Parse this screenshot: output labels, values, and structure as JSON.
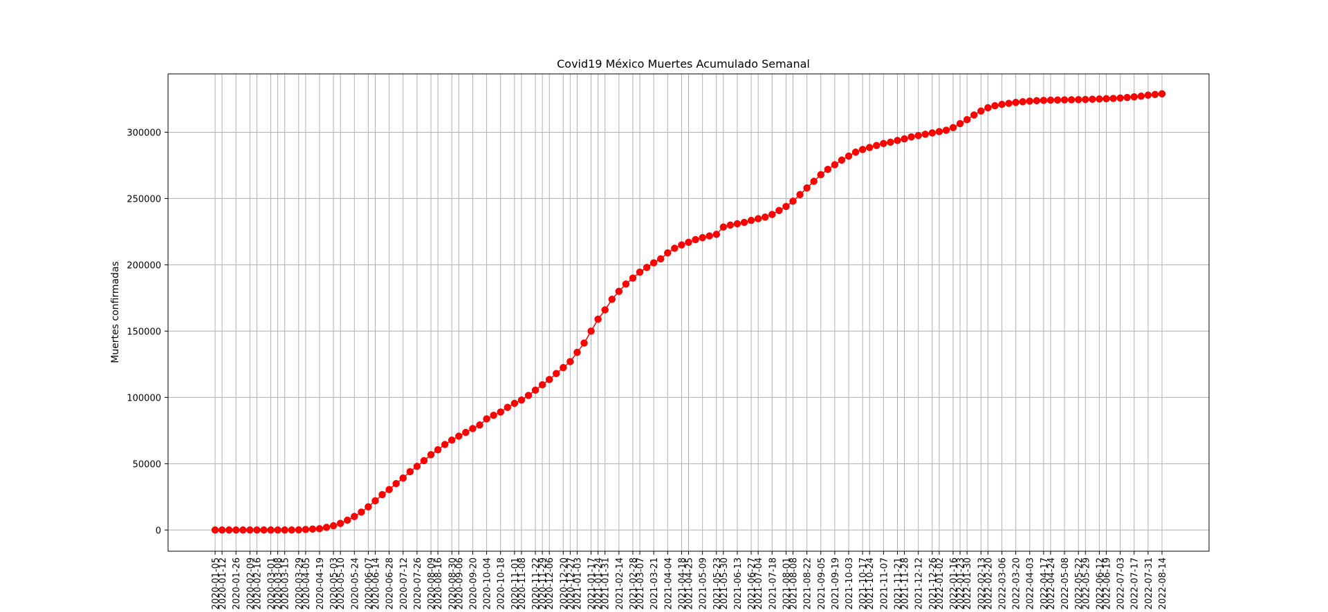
{
  "chart_data": {
    "type": "line",
    "title": "Covid19 México Muertes Acumulado Semanal",
    "xlabel": "",
    "ylabel": "Muertes confirmadas",
    "ylim": [
      -16000,
      344000
    ],
    "yticks": [
      0,
      50000,
      100000,
      150000,
      200000,
      250000,
      300000
    ],
    "grid": true,
    "marker": "circle",
    "color": "#ff0000",
    "x": [
      "2020-01-05",
      "2020-01-12",
      "2020-01-19",
      "2020-01-26",
      "2020-02-02",
      "2020-02-09",
      "2020-02-16",
      "2020-02-23",
      "2020-03-01",
      "2020-03-08",
      "2020-03-15",
      "2020-03-22",
      "2020-03-29",
      "2020-04-05",
      "2020-04-12",
      "2020-04-19",
      "2020-04-26",
      "2020-05-03",
      "2020-05-10",
      "2020-05-17",
      "2020-05-24",
      "2020-05-31",
      "2020-06-07",
      "2020-06-14",
      "2020-06-21",
      "2020-06-28",
      "2020-07-05",
      "2020-07-12",
      "2020-07-19",
      "2020-07-26",
      "2020-08-02",
      "2020-08-09",
      "2020-08-16",
      "2020-08-23",
      "2020-08-30",
      "2020-09-06",
      "2020-09-13",
      "2020-09-20",
      "2020-09-27",
      "2020-10-04",
      "2020-10-11",
      "2020-10-18",
      "2020-10-25",
      "2020-11-01",
      "2020-11-08",
      "2020-11-15",
      "2020-11-22",
      "2020-11-29",
      "2020-12-06",
      "2020-12-13",
      "2020-12-20",
      "2020-12-27",
      "2021-01-03",
      "2021-01-10",
      "2021-01-17",
      "2021-01-24",
      "2021-01-31",
      "2021-02-07",
      "2021-02-14",
      "2021-02-21",
      "2021-02-28",
      "2021-03-07",
      "2021-03-14",
      "2021-03-21",
      "2021-03-28",
      "2021-04-04",
      "2021-04-11",
      "2021-04-18",
      "2021-04-25",
      "2021-05-02",
      "2021-05-09",
      "2021-05-16",
      "2021-05-23",
      "2021-05-30",
      "2021-06-06",
      "2021-06-13",
      "2021-06-20",
      "2021-06-27",
      "2021-07-04",
      "2021-07-11",
      "2021-07-18",
      "2021-07-25",
      "2021-08-01",
      "2021-08-08",
      "2021-08-15",
      "2021-08-22",
      "2021-08-29",
      "2021-09-05",
      "2021-09-12",
      "2021-09-19",
      "2021-09-26",
      "2021-10-03",
      "2021-10-10",
      "2021-10-17",
      "2021-10-24",
      "2021-10-31",
      "2021-11-07",
      "2021-11-14",
      "2021-11-21",
      "2021-11-28",
      "2021-12-05",
      "2021-12-12",
      "2021-12-19",
      "2021-12-26",
      "2022-01-02",
      "2022-01-09",
      "2022-01-16",
      "2022-01-23",
      "2022-01-30",
      "2022-02-06",
      "2022-02-13",
      "2022-02-20",
      "2022-02-27",
      "2022-03-06",
      "2022-03-13",
      "2022-03-20",
      "2022-03-27",
      "2022-04-03",
      "2022-04-10",
      "2022-04-17",
      "2022-04-24",
      "2022-05-01",
      "2022-05-08",
      "2022-05-15",
      "2022-05-22",
      "2022-05-29",
      "2022-06-05",
      "2022-06-12",
      "2022-06-19",
      "2022-06-26",
      "2022-07-03",
      "2022-07-10",
      "2022-07-17",
      "2022-07-24",
      "2022-07-31",
      "2022-08-07",
      "2022-08-14"
    ],
    "xtick_labels": [
      "2020-01-05",
      "2020-01-12",
      "2020-01-26",
      "2020-02-09",
      "2020-02-16",
      "2020-03-01",
      "2020-03-08",
      "2020-03-15",
      "2020-03-29",
      "2020-04-05",
      "2020-04-19",
      "2020-05-03",
      "2020-05-10",
      "2020-05-24",
      "2020-06-07",
      "2020-06-14",
      "2020-06-28",
      "2020-07-12",
      "2020-07-26",
      "2020-08-09",
      "2020-08-16",
      "2020-08-30",
      "2020-09-06",
      "2020-09-20",
      "2020-10-04",
      "2020-10-18",
      "2020-11-01",
      "2020-11-08",
      "2020-11-22",
      "2020-11-29",
      "2020-12-06",
      "2020-12-20",
      "2020-12-27",
      "2021-01-03",
      "2021-01-17",
      "2021-01-24",
      "2021-01-31",
      "2021-02-14",
      "2021-02-28",
      "2021-03-07",
      "2021-03-21",
      "2021-04-04",
      "2021-04-18",
      "2021-04-25",
      "2021-05-09",
      "2021-05-23",
      "2021-05-30",
      "2021-06-13",
      "2021-06-27",
      "2021-07-04",
      "2021-07-18",
      "2021-08-01",
      "2021-08-08",
      "2021-08-22",
      "2021-09-05",
      "2021-09-19",
      "2021-10-03",
      "2021-10-17",
      "2021-10-24",
      "2021-11-07",
      "2021-11-21",
      "2021-11-28",
      "2021-12-12",
      "2021-12-26",
      "2022-01-02",
      "2022-01-16",
      "2022-01-23",
      "2022-01-30",
      "2022-02-13",
      "2022-02-20",
      "2022-03-06",
      "2022-03-20",
      "2022-04-03",
      "2022-04-17",
      "2022-04-24",
      "2022-05-08",
      "2022-05-22",
      "2022-05-29",
      "2022-06-12",
      "2022-06-19",
      "2022-07-03",
      "2022-07-17",
      "2022-07-31",
      "2022-08-14"
    ],
    "y": [
      0,
      0,
      0,
      0,
      0,
      0,
      0,
      0,
      0,
      0,
      2,
      20,
      100,
      400,
      700,
      1000,
      2000,
      3200,
      5000,
      7400,
      10200,
      13500,
      17500,
      22000,
      26700,
      30500,
      35000,
      39200,
      44000,
      48000,
      52300,
      56800,
      60500,
      64500,
      67800,
      70800,
      73600,
      76500,
      79200,
      83800,
      86500,
      89000,
      92500,
      95500,
      98000,
      101500,
      105500,
      109500,
      113500,
      118000,
      122500,
      127000,
      134000,
      141000,
      150000,
      159000,
      166000,
      174000,
      180000,
      185500,
      190000,
      194500,
      198000,
      201500,
      204500,
      209000,
      212500,
      215000,
      217000,
      219000,
      220500,
      221800,
      223000,
      228500,
      230000,
      231000,
      232000,
      233500,
      234800,
      236000,
      238000,
      241000,
      244000,
      248000,
      253000,
      258000,
      263000,
      268000,
      272000,
      275500,
      279000,
      282000,
      285000,
      287000,
      288500,
      290000,
      291500,
      292500,
      293800,
      295000,
      296500,
      297500,
      298500,
      299500,
      300500,
      301500,
      303500,
      306500,
      309500,
      313000,
      316000,
      318500,
      320000,
      321000,
      321800,
      322500,
      323000,
      323500,
      323800,
      324000,
      324200,
      324300,
      324400,
      324500,
      324600,
      324700,
      324900,
      325100,
      325300,
      325500,
      325800,
      326200,
      326700,
      327200,
      328000,
      328500,
      329000
    ]
  }
}
